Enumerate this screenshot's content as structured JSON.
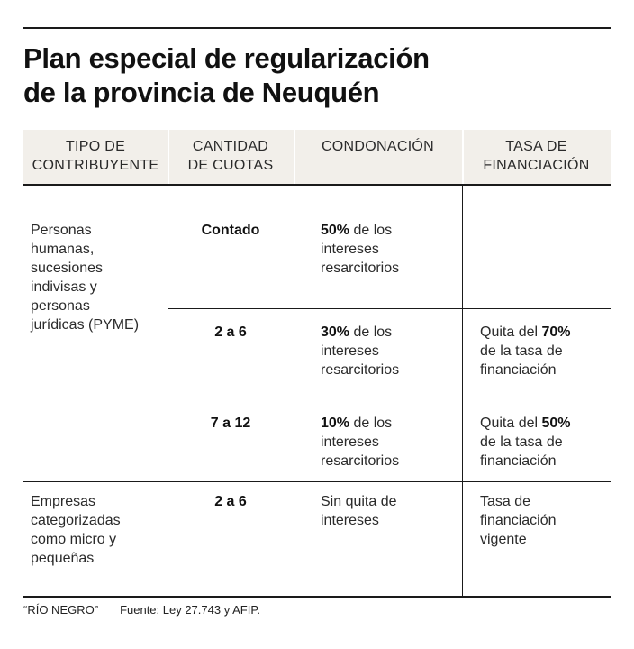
{
  "title": {
    "line1": "Plan especial de regularización",
    "line2": "de la provincia de Neuquén"
  },
  "table": {
    "headers": [
      {
        "line1": "TIPO DE",
        "line2": "CONTRIBUYENTE"
      },
      {
        "line1": "CANTIDAD",
        "line2": "DE CUOTAS"
      },
      {
        "line1": "CONDONACIÓN",
        "line2": ""
      },
      {
        "line1": "TASA DE",
        "line2": "FINANCIACIÓN"
      }
    ],
    "group1": {
      "type_lines": [
        "Personas",
        "humanas,",
        "sucesiones",
        "indivisas y",
        "personas",
        "jurídicas (PYME)"
      ],
      "rows": [
        {
          "cuotas": "Contado",
          "cond_pct": "50%",
          "cond_rest": " de los",
          "cond_line2": "intereses",
          "cond_line3": "resarcitorios",
          "tasa_pre": "",
          "tasa_pct": "",
          "tasa_line2": "",
          "tasa_line3": ""
        },
        {
          "cuotas": "2 a 6",
          "cond_pct": "30%",
          "cond_rest": " de los",
          "cond_line2": "intereses",
          "cond_line3": "resarcitorios",
          "tasa_pre": "Quita del ",
          "tasa_pct": "70%",
          "tasa_line2": "de la tasa de",
          "tasa_line3": "financiación"
        },
        {
          "cuotas": "7 a 12",
          "cond_pct": "10%",
          "cond_rest": " de los",
          "cond_line2": "intereses",
          "cond_line3": "resarcitorios",
          "tasa_pre": "Quita del ",
          "tasa_pct": "50%",
          "tasa_line2": "de la tasa de",
          "tasa_line3": "financiación"
        }
      ]
    },
    "group2": {
      "type_lines": [
        "Empresas",
        "categorizadas",
        "como micro y",
        "pequeñas"
      ],
      "cuotas": "2 a 6",
      "cond_lines": [
        "Sin quita de",
        "intereses"
      ],
      "tasa_lines": [
        "Tasa de",
        "financiación",
        "vigente"
      ]
    }
  },
  "footer": {
    "credit": "“RÍO NEGRO”",
    "source": "Fuente: Ley 27.743 y AFIP."
  }
}
